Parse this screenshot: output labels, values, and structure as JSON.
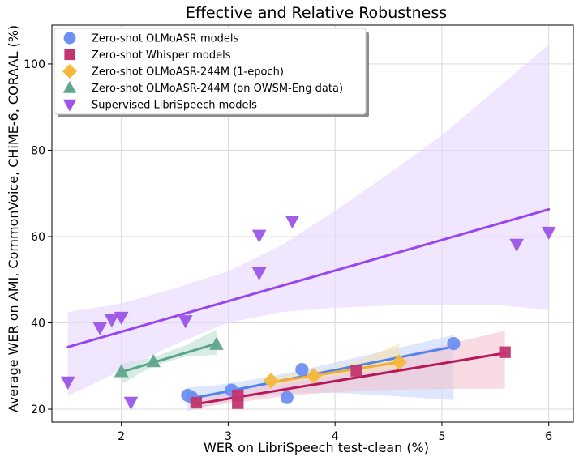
{
  "chart_data": {
    "type": "scatter",
    "title": "Effective and Relative Robustness",
    "xlabel": "WER on LibriSpeech test-clean (%)",
    "ylabel": "Average WER on AMI, CommonVoice, CHiME-6, CORAAL (%)",
    "xlim": [
      1.35,
      6.23
    ],
    "ylim": [
      17,
      109
    ],
    "xticks": [
      2,
      3,
      4,
      5,
      6
    ],
    "yticks": [
      20,
      40,
      60,
      80,
      100
    ],
    "grid": true,
    "legend_position": "top-left",
    "series": [
      {
        "name": "Zero-shot OLMoASR models",
        "marker": "circle",
        "color": "#6e8ff2",
        "line_color": "#4e84ee",
        "band_color": "#c8d8fb",
        "points": [
          [
            2.62,
            23.2
          ],
          [
            2.66,
            22.7
          ],
          [
            3.03,
            24.4
          ],
          [
            3.55,
            22.7
          ],
          [
            3.69,
            29.2
          ],
          [
            5.11,
            35.2
          ]
        ],
        "fit": {
          "x": [
            2.62,
            5.11
          ],
          "y": [
            22.3,
            34.5
          ]
        },
        "band": {
          "x": [
            2.62,
            2.9,
            3.3,
            3.7,
            4.1,
            4.5,
            4.8,
            5.11
          ],
          "lower": [
            19.5,
            21.4,
            22.9,
            23.8,
            23.7,
            23.1,
            22.6,
            22.1
          ],
          "upper": [
            25.0,
            25.6,
            27.1,
            29.1,
            31.4,
            33.7,
            35.4,
            37.2
          ]
        }
      },
      {
        "name": "Zero-shot Whisper models",
        "marker": "square",
        "color": "#c2356e",
        "line_color": "#b8175a",
        "band_color": "#f2c3d0",
        "points": [
          [
            2.7,
            21.5
          ],
          [
            3.09,
            23.2
          ],
          [
            3.09,
            21.4
          ],
          [
            4.2,
            28.9
          ],
          [
            5.59,
            33.2
          ]
        ],
        "fit": {
          "x": [
            2.7,
            5.59
          ],
          "y": [
            21.2,
            33.0
          ]
        },
        "band": {
          "x": [
            2.7,
            3.1,
            3.5,
            3.9,
            4.3,
            4.7,
            5.1,
            5.59
          ],
          "lower": [
            20.3,
            21.6,
            22.9,
            23.8,
            24.3,
            24.6,
            24.7,
            24.8
          ],
          "upper": [
            23.2,
            24.4,
            26.2,
            28.3,
            30.5,
            32.9,
            35.3,
            38.2
          ]
        }
      },
      {
        "name": "Zero-shot OLMoASR-244M (1-epoch)",
        "marker": "diamond",
        "color": "#f4b83c",
        "line_color": "#f0ad3c",
        "band_color": "#f8e0b0",
        "points": [
          [
            3.4,
            26.6
          ],
          [
            3.8,
            27.7
          ],
          [
            4.6,
            30.9
          ]
        ],
        "fit": {
          "x": [
            3.4,
            4.6
          ],
          "y": [
            26.2,
            30.9
          ]
        },
        "band": {
          "x": [
            3.4,
            3.8,
            4.2,
            4.6
          ],
          "lower": [
            25.2,
            27.0,
            28.4,
            29.4
          ],
          "upper": [
            27.4,
            28.6,
            31.0,
            35.2
          ]
        }
      },
      {
        "name": "Zero-shot OLMoASR-244M (on OWSM-Eng data)",
        "marker": "triangle-up",
        "color": "#61a58d",
        "line_color": "#5ea48d",
        "band_color": "#bfe0d2",
        "points": [
          [
            2.0,
            28.7
          ],
          [
            2.3,
            31.0
          ],
          [
            2.89,
            35.0
          ]
        ],
        "fit": {
          "x": [
            2.0,
            2.89
          ],
          "y": [
            28.6,
            35.2
          ]
        },
        "band": {
          "x": [
            2.0,
            2.3,
            2.6,
            2.89
          ],
          "lower": [
            25.8,
            30.0,
            32.2,
            32.6
          ],
          "upper": [
            30.6,
            32.0,
            34.8,
            38.5
          ]
        }
      },
      {
        "name": "Supervised LibriSpeech models",
        "marker": "triangle-down",
        "color": "#9b55e8",
        "line_color": "#9a46ee",
        "band_color": "#e6d6fb",
        "points": [
          [
            1.5,
            26.3
          ],
          [
            1.8,
            38.9
          ],
          [
            1.91,
            40.7
          ],
          [
            2.0,
            41.3
          ],
          [
            2.09,
            21.6
          ],
          [
            2.6,
            40.5
          ],
          [
            3.29,
            60.3
          ],
          [
            3.29,
            51.6
          ],
          [
            3.6,
            63.6
          ],
          [
            5.7,
            58.2
          ],
          [
            6.0,
            61.0
          ]
        ],
        "fit": {
          "x": [
            1.5,
            6.0
          ],
          "y": [
            34.4,
            66.3
          ]
        },
        "band": {
          "x": [
            1.5,
            2.0,
            2.5,
            3.0,
            3.5,
            4.0,
            4.5,
            5.0,
            5.5,
            6.0
          ],
          "lower": [
            23.0,
            29.0,
            35.0,
            40.0,
            42.5,
            43.5,
            44.0,
            44.2,
            44.2,
            43.0
          ],
          "upper": [
            42.5,
            44.5,
            48.0,
            52.0,
            58.0,
            66.0,
            74.5,
            83.5,
            94.0,
            104.5
          ]
        }
      }
    ]
  }
}
